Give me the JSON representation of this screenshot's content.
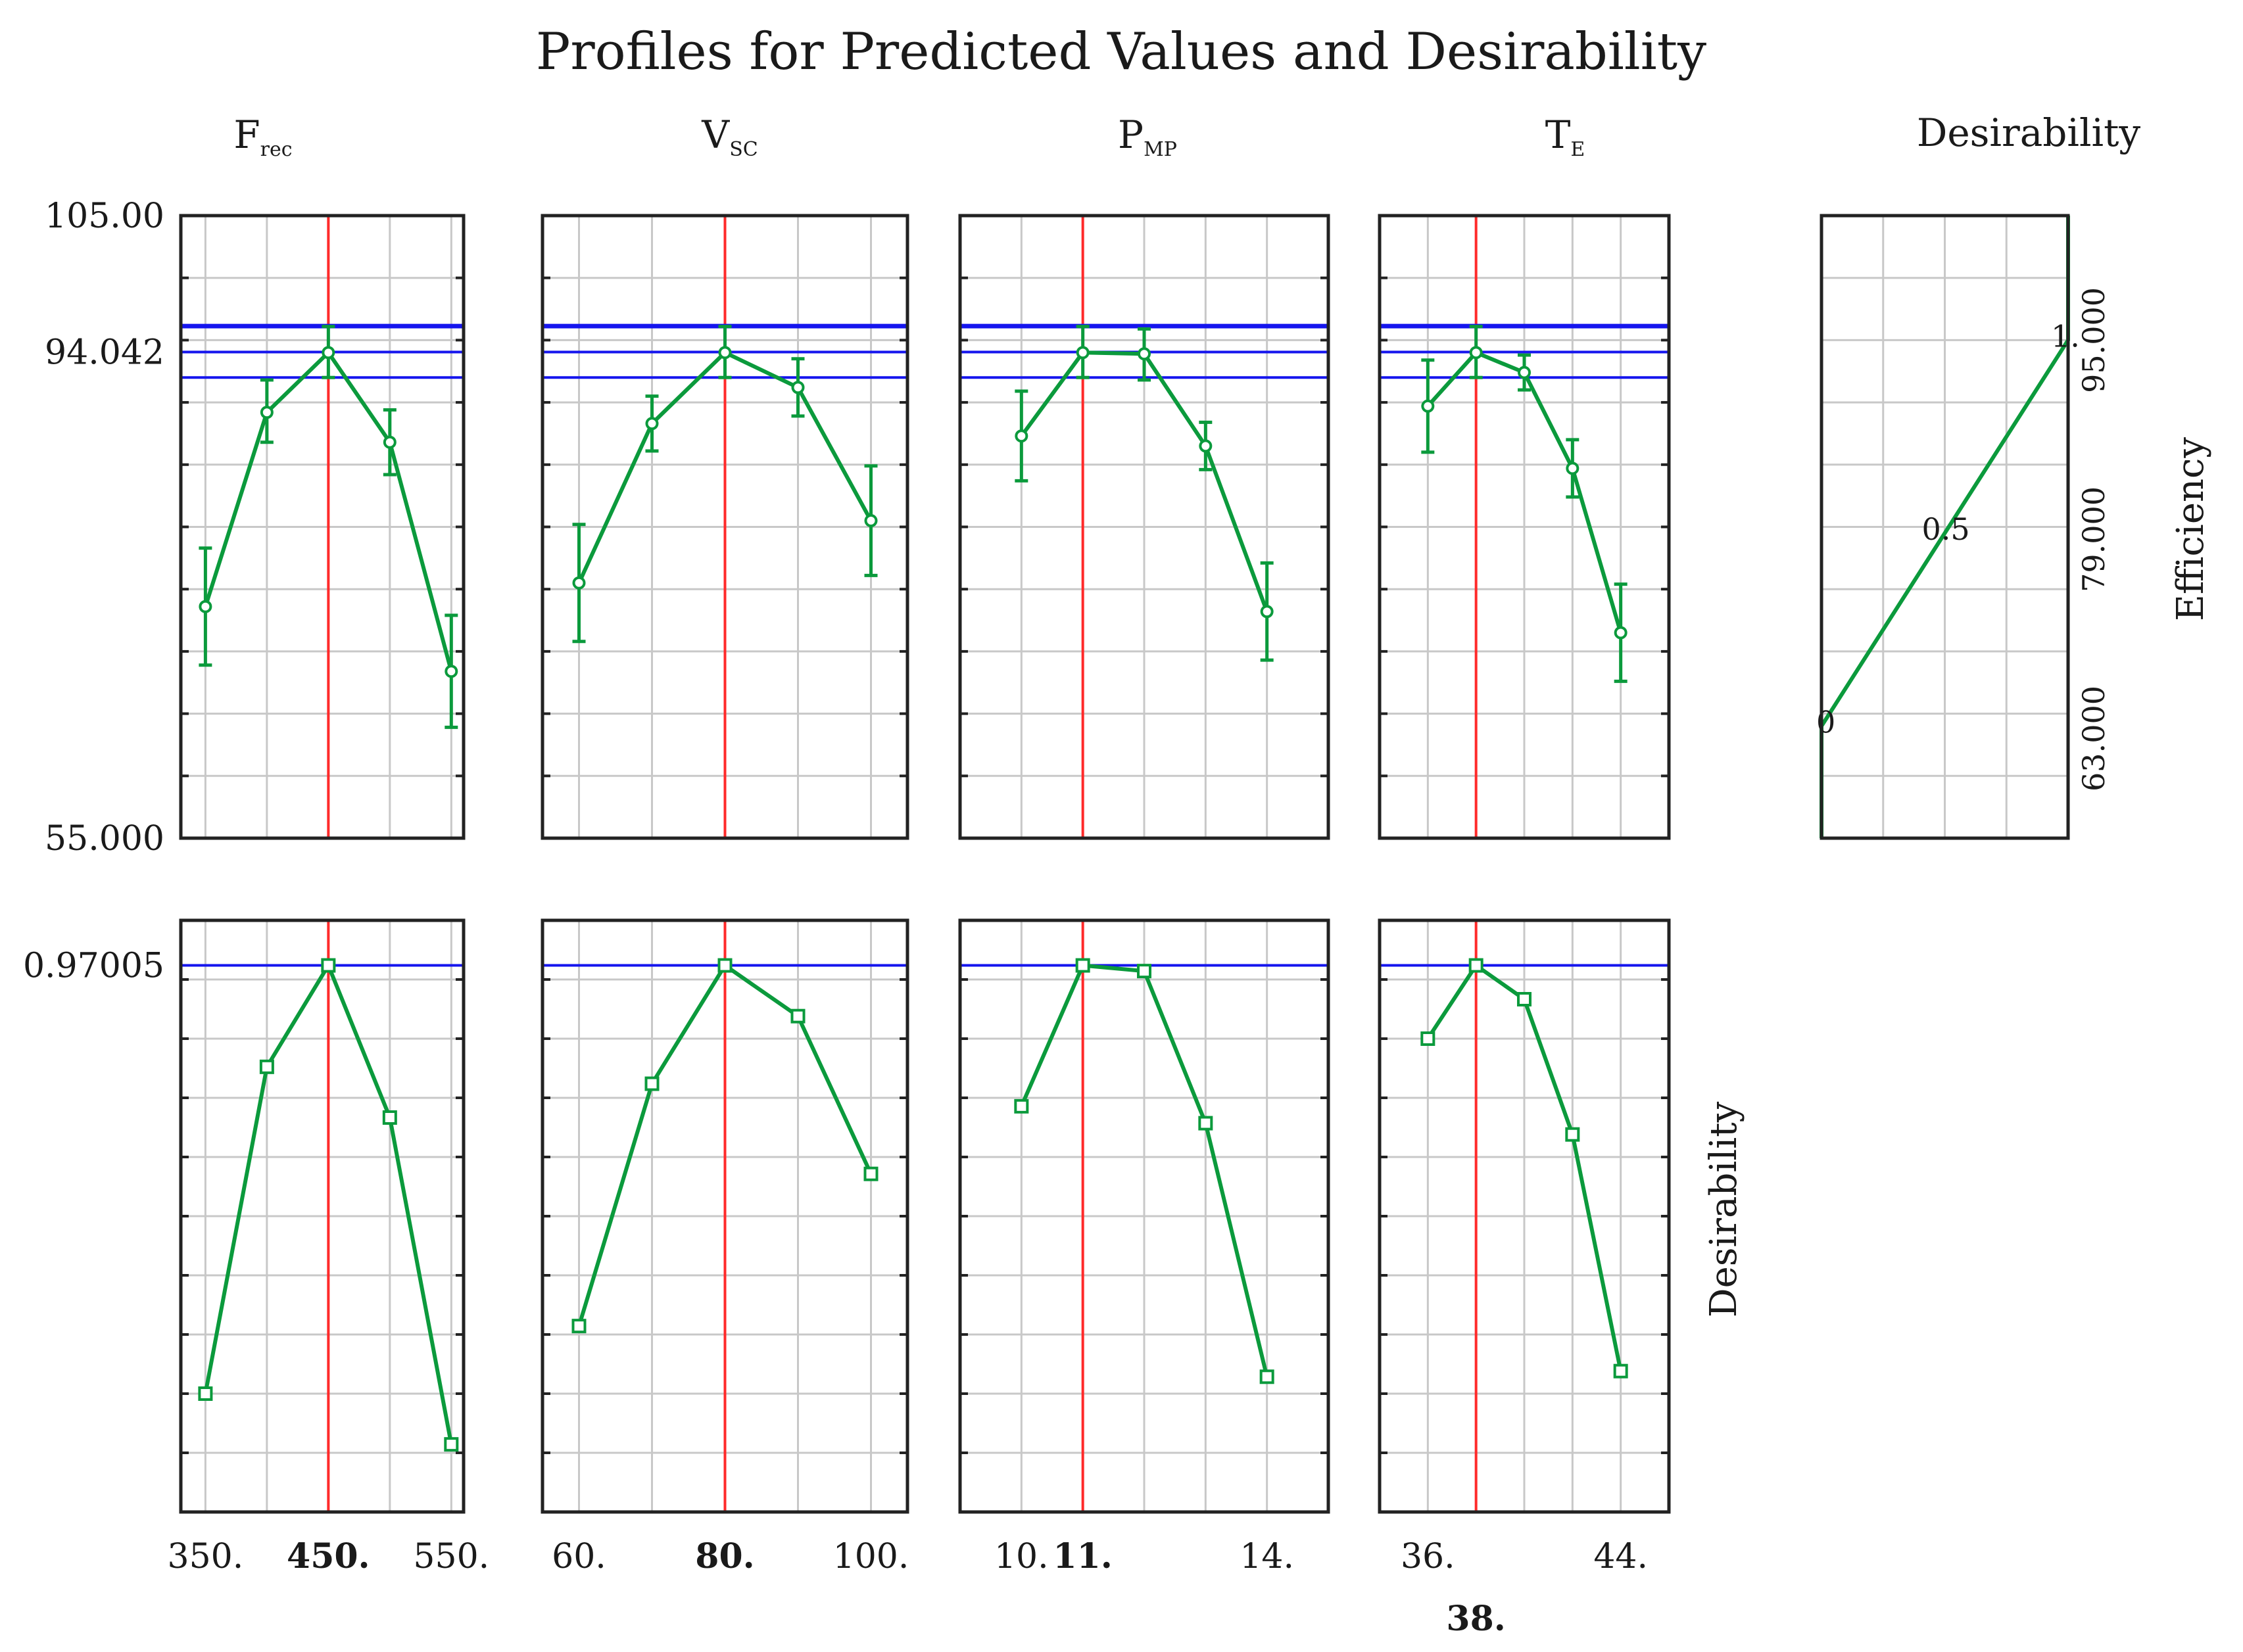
{
  "header": {
    "title": "Profiles for Predicted Values and Desirability",
    "desirability_column": "Desirability"
  },
  "colors": {
    "line": "#0b9a3c",
    "current": "#ff2a2a",
    "reference": "#1515ee",
    "grid": "#c8c8c8"
  },
  "chart_data": {
    "type": "line",
    "title": "Profiles for Predicted Values and Desirability",
    "response": {
      "ylim": [
        55.0,
        105.0
      ],
      "tick_labels": [
        "105.00",
        "94.042",
        "55.000"
      ],
      "current_value": 94.042,
      "current_label": "94.042",
      "confidence_band": [
        92.0,
        96.2
      ]
    },
    "desirability_axis": {
      "current_value": 0.97005,
      "current_label": "0.97005",
      "ylim": [
        0.0,
        1.05
      ],
      "ylabel": "Desirability"
    },
    "factors": [
      {
        "name_main": "F",
        "name_sub": "rec",
        "xlim": [
          330,
          560
        ],
        "tick_labels": [
          "350.",
          "450.",
          "550."
        ],
        "current": 450,
        "current_label": "450.",
        "x": [
          350,
          400,
          450,
          500,
          550
        ],
        "response": [
          73.6,
          89.2,
          94.0,
          86.8,
          68.4
        ],
        "response_lo": [
          68.9,
          86.8,
          92.0,
          84.2,
          63.9
        ],
        "response_hi": [
          78.3,
          91.8,
          96.1,
          89.4,
          72.9
        ],
        "desirability": [
          0.21,
          0.79,
          0.97,
          0.7,
          0.12
        ]
      },
      {
        "name_main": "V",
        "name_sub": "SC",
        "xlim": [
          55,
          105
        ],
        "tick_labels": [
          "60.",
          "80.",
          "100."
        ],
        "current": 80,
        "current_label": "80.",
        "x": [
          60,
          70,
          80,
          90,
          100
        ],
        "response": [
          75.5,
          88.3,
          94.0,
          91.2,
          80.5
        ],
        "response_lo": [
          70.8,
          86.1,
          92.0,
          88.9,
          76.1
        ],
        "response_hi": [
          80.2,
          90.5,
          96.1,
          93.5,
          84.9
        ],
        "desirability": [
          0.33,
          0.76,
          0.97,
          0.88,
          0.6
        ]
      },
      {
        "name_main": "P",
        "name_sub": "MP",
        "xlim": [
          9,
          15
        ],
        "tick_labels": [
          "10.",
          "11.",
          "14."
        ],
        "current": 11,
        "current_label": "11.",
        "x": [
          10,
          11,
          12,
          13,
          14
        ],
        "response": [
          87.3,
          94.0,
          93.9,
          86.5,
          73.2
        ],
        "response_lo": [
          83.7,
          92.0,
          91.8,
          84.6,
          69.3
        ],
        "response_hi": [
          90.9,
          96.1,
          95.9,
          88.4,
          77.1
        ],
        "desirability": [
          0.72,
          0.97,
          0.96,
          0.69,
          0.24
        ]
      },
      {
        "name_main": "T",
        "name_sub": "E",
        "xlim": [
          34,
          46
        ],
        "tick_labels": [
          "36.",
          "44."
        ],
        "current": 38,
        "current_label": "38.",
        "x": [
          36,
          38,
          40,
          42,
          44
        ],
        "response": [
          89.7,
          94.0,
          92.4,
          84.7,
          71.5
        ],
        "response_lo": [
          86.0,
          92.0,
          91.0,
          82.4,
          67.6
        ],
        "response_hi": [
          93.4,
          96.1,
          93.8,
          87.0,
          75.4
        ],
        "desirability": [
          0.84,
          0.97,
          0.91,
          0.67,
          0.25
        ]
      }
    ],
    "efficiency_desirability": {
      "xlabel": "Desirability",
      "ylabel": "Efficiency",
      "ylim": [
        55.0,
        105.0
      ],
      "tick_labels": [
        "95.000",
        "79.000",
        "63.000"
      ],
      "tick_values": [
        95.0,
        79.0,
        63.0
      ],
      "points": [
        {
          "efficiency": 55.0,
          "desirability": 0.0
        },
        {
          "efficiency": 64.0,
          "desirability": 0.0
        },
        {
          "efficiency": 95.0,
          "desirability": 1.0
        },
        {
          "efficiency": 105.0,
          "desirability": 1.0
        }
      ],
      "annotations": [
        {
          "text": "0",
          "efficiency": 64.0
        },
        {
          "text": "0.5",
          "efficiency": 79.5
        },
        {
          "text": "1.",
          "efficiency": 95.0
        }
      ]
    }
  }
}
